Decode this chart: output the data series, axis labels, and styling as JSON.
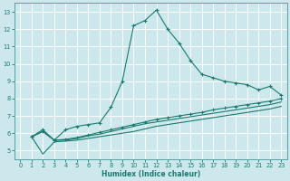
{
  "xlabel": "Humidex (Indice chaleur)",
  "bg_color": "#cce8ec",
  "grid_color": "#ffffff",
  "line_color": "#1a7a6e",
  "xlim": [
    -0.5,
    23.5
  ],
  "ylim": [
    4.5,
    13.5
  ],
  "xticks": [
    0,
    1,
    2,
    3,
    4,
    5,
    6,
    7,
    8,
    9,
    10,
    11,
    12,
    13,
    14,
    15,
    16,
    17,
    18,
    19,
    20,
    21,
    22,
    23
  ],
  "yticks": [
    5,
    6,
    7,
    8,
    9,
    10,
    11,
    12,
    13
  ],
  "line1_x": [
    1,
    2,
    3,
    4,
    5,
    6,
    7,
    8,
    9,
    10,
    11,
    12,
    13,
    14,
    15,
    16,
    17,
    18,
    19,
    20,
    21,
    22,
    23
  ],
  "line1_y": [
    5.8,
    6.2,
    5.6,
    6.2,
    6.4,
    6.5,
    6.6,
    7.5,
    9.0,
    12.2,
    12.5,
    13.1,
    12.0,
    11.2,
    10.2,
    9.4,
    9.2,
    9.0,
    8.9,
    8.8,
    8.5,
    8.7,
    8.2
  ],
  "line2_x": [
    1,
    2,
    3,
    4,
    5,
    6,
    7,
    8,
    9,
    10,
    11,
    12,
    13,
    14,
    15,
    16,
    17,
    18,
    19,
    20,
    21,
    22,
    23
  ],
  "line2_y": [
    5.8,
    6.1,
    5.6,
    5.65,
    5.75,
    5.9,
    6.05,
    6.2,
    6.35,
    6.5,
    6.65,
    6.8,
    6.9,
    7.0,
    7.1,
    7.2,
    7.35,
    7.45,
    7.55,
    7.65,
    7.75,
    7.85,
    8.0
  ],
  "line3_x": [
    1,
    2,
    3,
    4,
    5,
    6,
    7,
    8,
    9,
    10,
    11,
    12,
    13,
    14,
    15,
    16,
    17,
    18,
    19,
    20,
    21,
    22,
    23
  ],
  "line3_y": [
    5.8,
    6.1,
    5.6,
    5.6,
    5.7,
    5.85,
    5.95,
    6.1,
    6.25,
    6.4,
    6.55,
    6.65,
    6.75,
    6.85,
    6.95,
    7.05,
    7.15,
    7.25,
    7.35,
    7.45,
    7.55,
    7.65,
    7.8
  ],
  "line4_x": [
    1,
    2,
    3,
    4,
    5,
    6,
    7,
    8,
    9,
    10,
    11,
    12,
    13,
    14,
    15,
    16,
    17,
    18,
    19,
    20,
    21,
    22,
    23
  ],
  "line4_y": [
    5.8,
    4.8,
    5.5,
    5.55,
    5.6,
    5.7,
    5.8,
    5.9,
    6.0,
    6.1,
    6.25,
    6.4,
    6.5,
    6.6,
    6.7,
    6.8,
    6.9,
    7.0,
    7.1,
    7.2,
    7.3,
    7.4,
    7.55
  ]
}
